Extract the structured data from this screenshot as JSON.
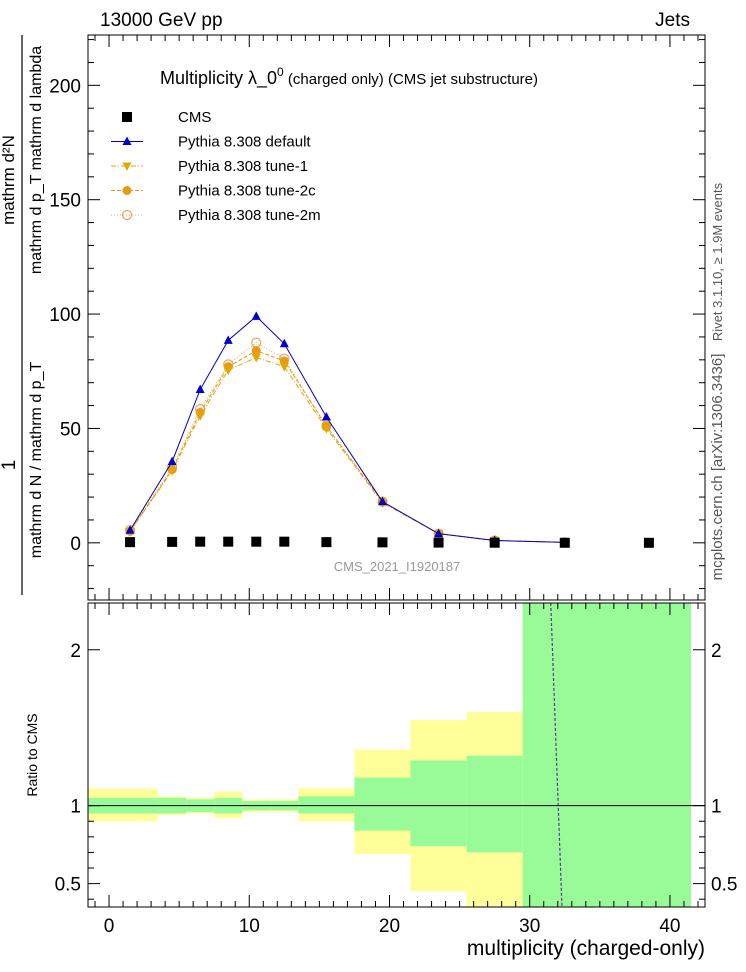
{
  "header": {
    "left": "13000 GeV pp",
    "right": "Jets"
  },
  "title": {
    "main": "Multiplicity  λ_0",
    "superscript": "0",
    "rest": " (charged only) (CMS jet substructure)"
  },
  "analysis_id": "CMS_2021_I1920187",
  "side_labels": {
    "rivet": "Rivet 3.1.10, ≥ 1.9M events",
    "mcplots": "mcplots.cern.ch [arXiv:1306.3436]"
  },
  "ylabel_top": {
    "numerator": "mathrm d²N",
    "denominator": "mathrm d p_T mathrm d lambda",
    "prefix_num": "1",
    "prefix_den": "mathrm d N / mathrm d p_T"
  },
  "chart_data": [
    {
      "type": "line",
      "panel": "main",
      "ylim": [
        -25,
        222
      ],
      "xlim": [
        -1.5,
        42.5
      ],
      "yticks": [
        0,
        50,
        100,
        150,
        200
      ],
      "ytick_labels": [
        "0",
        "50",
        "100",
        "150",
        "200"
      ],
      "legend_placement": "top-left",
      "series": [
        {
          "name": "CMS",
          "style": "data",
          "color": "#000000",
          "x": [
            1.5,
            4.5,
            6.5,
            8.5,
            10.5,
            12.5,
            15.5,
            19.5,
            23.5,
            27.5,
            32.5,
            38.5
          ],
          "values": [
            0.3,
            0.4,
            0.5,
            0.5,
            0.5,
            0.5,
            0.3,
            0.2,
            0.1,
            0.05,
            0.02,
            0.01
          ]
        },
        {
          "name": "Pythia 8.308 default",
          "style": "triangle-up",
          "color": "#0000cc",
          "x": [
            1.5,
            4.5,
            6.5,
            8.5,
            10.5,
            12.5,
            15.5,
            19.5,
            23.5,
            27.5,
            32.5
          ],
          "values": [
            5.5,
            35.5,
            67,
            88.5,
            99,
            87,
            55,
            18,
            4,
            1,
            0.2
          ]
        },
        {
          "name": "Pythia 8.308 tune-1",
          "style": "triangle-down",
          "color": "#e0a800",
          "x": [
            1.5,
            4.5,
            6.5,
            8.5,
            10.5,
            12.5,
            15.5,
            19.5,
            23.5,
            27.5,
            32.5
          ],
          "values": [
            5,
            31.5,
            55.5,
            75.5,
            81,
            77,
            50,
            17.5,
            4,
            1,
            0.2
          ]
        },
        {
          "name": "Pythia 8.308 tune-2c",
          "style": "circle-filled",
          "color": "#e89a10",
          "x": [
            1.5,
            4.5,
            6.5,
            8.5,
            10.5,
            12.5,
            15.5,
            19.5,
            23.5,
            27.5,
            32.5
          ],
          "values": [
            5,
            32,
            57,
            77,
            84,
            79.5,
            51,
            18,
            4,
            1,
            0.2
          ]
        },
        {
          "name": "Pythia 8.308 tune-2m",
          "style": "circle-open",
          "color": "#f0a060",
          "x": [
            1.5,
            4.5,
            6.5,
            8.5,
            10.5,
            12.5,
            15.5,
            19.5,
            23.5,
            27.5,
            32.5
          ],
          "values": [
            5.5,
            33,
            58.5,
            78,
            87.5,
            80.5,
            51,
            18,
            4,
            1,
            0.2
          ]
        }
      ]
    },
    {
      "type": "area",
      "panel": "ratio",
      "ylabel": "Ratio to CMS",
      "xlabel": "multiplicity (charged-only)",
      "ylim": [
        0.35,
        2.3
      ],
      "xlim": [
        -1.5,
        42.5
      ],
      "yticks": [
        0.5,
        1,
        2
      ],
      "ytick_labels": [
        "0.5",
        "1",
        "2"
      ],
      "xticks": [
        0,
        10,
        20,
        30,
        40
      ],
      "xtick_labels": [
        "0",
        "10",
        "20",
        "30",
        "40"
      ],
      "bins": [
        {
          "lo": -1.5,
          "hi": 3.5,
          "green": [
            0.95,
            1.05
          ],
          "yellow": [
            0.9,
            1.11
          ]
        },
        {
          "lo": 3.5,
          "hi": 5.5,
          "green": [
            0.95,
            1.05
          ],
          "yellow": [
            0.94,
            1.06
          ]
        },
        {
          "lo": 5.5,
          "hi": 7.5,
          "green": [
            0.96,
            1.04
          ],
          "yellow": [
            0.95,
            1.05
          ]
        },
        {
          "lo": 7.5,
          "hi": 9.5,
          "green": [
            0.95,
            1.05
          ],
          "yellow": [
            0.92,
            1.09
          ]
        },
        {
          "lo": 9.5,
          "hi": 11.5,
          "green": [
            0.97,
            1.03
          ],
          "yellow": [
            0.96,
            1.04
          ]
        },
        {
          "lo": 11.5,
          "hi": 13.5,
          "green": [
            0.97,
            1.03
          ],
          "yellow": [
            0.96,
            1.04
          ]
        },
        {
          "lo": 13.5,
          "hi": 17.5,
          "green": [
            0.95,
            1.06
          ],
          "yellow": [
            0.9,
            1.11
          ]
        },
        {
          "lo": 17.5,
          "hi": 21.5,
          "green": [
            0.84,
            1.18
          ],
          "yellow": [
            0.69,
            1.36
          ]
        },
        {
          "lo": 21.5,
          "hi": 25.5,
          "green": [
            0.74,
            1.29
          ],
          "yellow": [
            0.45,
            1.55
          ]
        },
        {
          "lo": 25.5,
          "hi": 29.5,
          "green": [
            0.7,
            1.32
          ],
          "yellow": [
            0.3,
            1.6
          ]
        },
        {
          "lo": 29.5,
          "hi": 41.5,
          "green": [
            0.3,
            2.3
          ],
          "yellow": [
            0.3,
            2.3
          ]
        }
      ],
      "reference": 1,
      "dashed_x": [
        31.5,
        32.3
      ]
    }
  ],
  "colors": {
    "green_band": "#98fb98",
    "yellow_band": "#ffff99",
    "side_text": "#555555",
    "analysis_text": "#999999"
  }
}
